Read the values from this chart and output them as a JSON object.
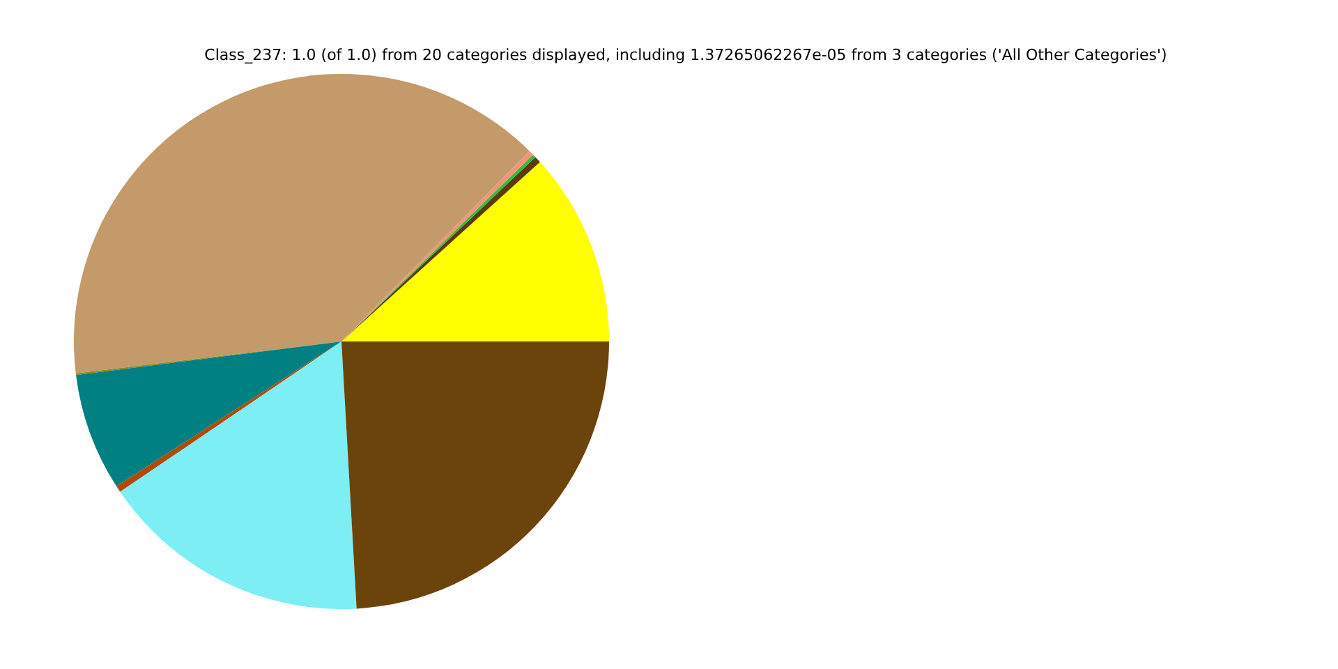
{
  "chart_data": {
    "type": "pie",
    "title": "Class_237: 1.0 (of 1.0) from 20 categories displayed, including 1.37265062267e-05 from 3 categories ('All Other Categories')",
    "categories": [
      null,
      null,
      null,
      null,
      null,
      null,
      null,
      null,
      null,
      null
    ],
    "values": [
      11.7,
      0.4,
      0.2,
      0.3,
      39.3,
      0.1,
      7.1,
      0.4,
      16.4,
      24.1
    ],
    "colors": [
      "#ffff00",
      "#5c3a0a",
      "#2fbf3a",
      "#f0957a",
      "#c49a6a",
      "#8f8a1e",
      "#008080",
      "#b04a0a",
      "#7deef4",
      "#6b440b"
    ],
    "legend": false
  }
}
